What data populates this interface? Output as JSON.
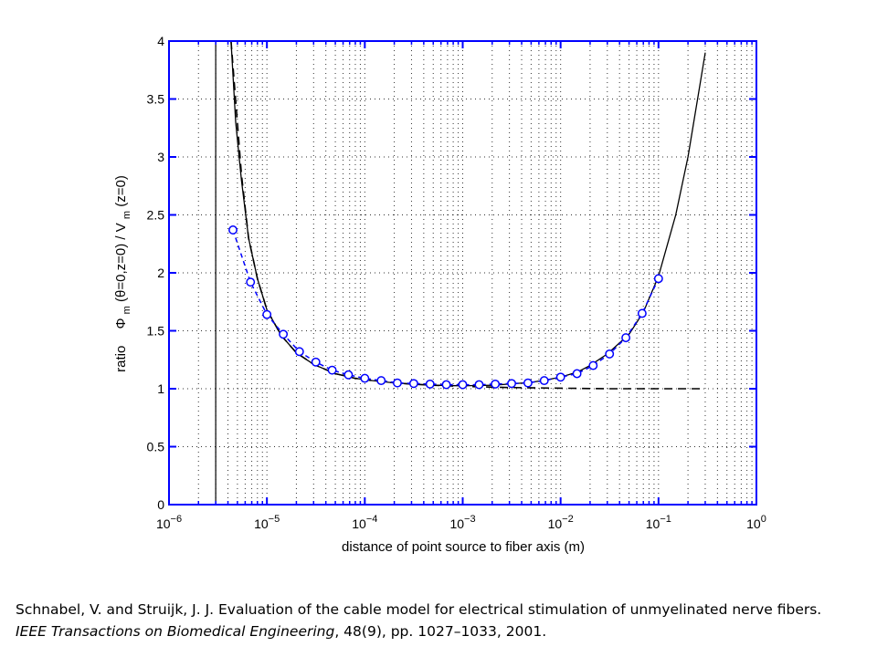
{
  "chart_data": {
    "type": "line",
    "xscale": "log",
    "xlim": [
      1e-06,
      1
    ],
    "ylim": [
      0,
      4
    ],
    "grid": true,
    "xlabel": "distance of point source to fiber axis  (m)",
    "ylabel_parts": [
      "ratio",
      "Φ",
      "m",
      "(θ=0,z=0) / V",
      "m",
      "(z=0)"
    ],
    "x_tick_labels": [
      {
        "base": "10",
        "exp": "−6"
      },
      {
        "base": "10",
        "exp": "−5"
      },
      {
        "base": "10",
        "exp": "−4"
      },
      {
        "base": "10",
        "exp": "−3"
      },
      {
        "base": "10",
        "exp": "−2"
      },
      {
        "base": "10",
        "exp": "−1"
      },
      {
        "base": "10",
        "exp": "0"
      }
    ],
    "y_tick_labels": [
      "0",
      "0.5",
      "1",
      "1.5",
      "2",
      "2.5",
      "3",
      "3.5",
      "4"
    ],
    "vertical_line_x": 3e-06,
    "colors": {
      "axis": "#0000ff",
      "curves": "#000000",
      "markers": "#0000ff",
      "grid": "#000000"
    },
    "series": [
      {
        "style": "solid-black",
        "x": [
          4.3e-06,
          4.8e-06,
          5.5e-06,
          6.5e-06,
          8e-06,
          1e-05,
          1.4e-05,
          2e-05,
          3e-05,
          5e-05,
          8e-05,
          0.00012,
          0.0002,
          0.0003,
          0.0005,
          0.001,
          0.002,
          0.003,
          0.005,
          0.007,
          0.01,
          0.015,
          0.02,
          0.03,
          0.05,
          0.07,
          0.1,
          0.15,
          0.2,
          0.3
        ],
        "y": [
          4.0,
          3.3,
          2.8,
          2.3,
          1.95,
          1.68,
          1.46,
          1.31,
          1.21,
          1.13,
          1.09,
          1.07,
          1.05,
          1.04,
          1.03,
          1.025,
          1.03,
          1.04,
          1.055,
          1.075,
          1.1,
          1.145,
          1.2,
          1.3,
          1.47,
          1.66,
          1.97,
          2.5,
          3.0,
          3.9
        ]
      },
      {
        "style": "dashed-black",
        "x": [
          4.3e-06,
          5.5e-06,
          6.5e-06,
          8e-06,
          1e-05,
          1.4e-05,
          2e-05,
          3e-05,
          5e-05,
          8e-05,
          0.00012,
          0.0002,
          0.0003,
          0.0005,
          0.001,
          0.003,
          0.01,
          0.03,
          0.1,
          0.3
        ],
        "y": [
          4.0,
          2.85,
          2.3,
          1.95,
          1.68,
          1.46,
          1.31,
          1.21,
          1.13,
          1.09,
          1.07,
          1.05,
          1.04,
          1.03,
          1.02,
          1.01,
          1.005,
          1.0,
          1.0,
          1.0
        ]
      },
      {
        "style": "blue-dashed-circles",
        "x": [
          4.5e-06,
          6.8e-06,
          1e-05,
          1.47e-05,
          2.15e-05,
          3.16e-05,
          4.64e-05,
          6.8e-05,
          0.0001,
          0.000147,
          0.000215,
          0.000316,
          0.000464,
          0.00068,
          0.001,
          0.00147,
          0.00215,
          0.00316,
          0.00464,
          0.0068,
          0.01,
          0.0147,
          0.0215,
          0.0316,
          0.0464,
          0.068,
          0.1
        ],
        "y": [
          2.37,
          1.92,
          1.64,
          1.47,
          1.32,
          1.23,
          1.16,
          1.12,
          1.09,
          1.07,
          1.05,
          1.045,
          1.04,
          1.035,
          1.035,
          1.035,
          1.04,
          1.045,
          1.05,
          1.07,
          1.1,
          1.13,
          1.2,
          1.3,
          1.44,
          1.65,
          1.95
        ]
      }
    ]
  },
  "citation": {
    "authors": "Schnabel, V. and Struijk, J. J. Evaluation of the cable model for electrical stimulation of unmyelinated nerve fibers. ",
    "journal": "IEEE Transactions on Biomedical Engineering",
    "rest": ", 48(9), pp. 1027–1033, 2001."
  }
}
